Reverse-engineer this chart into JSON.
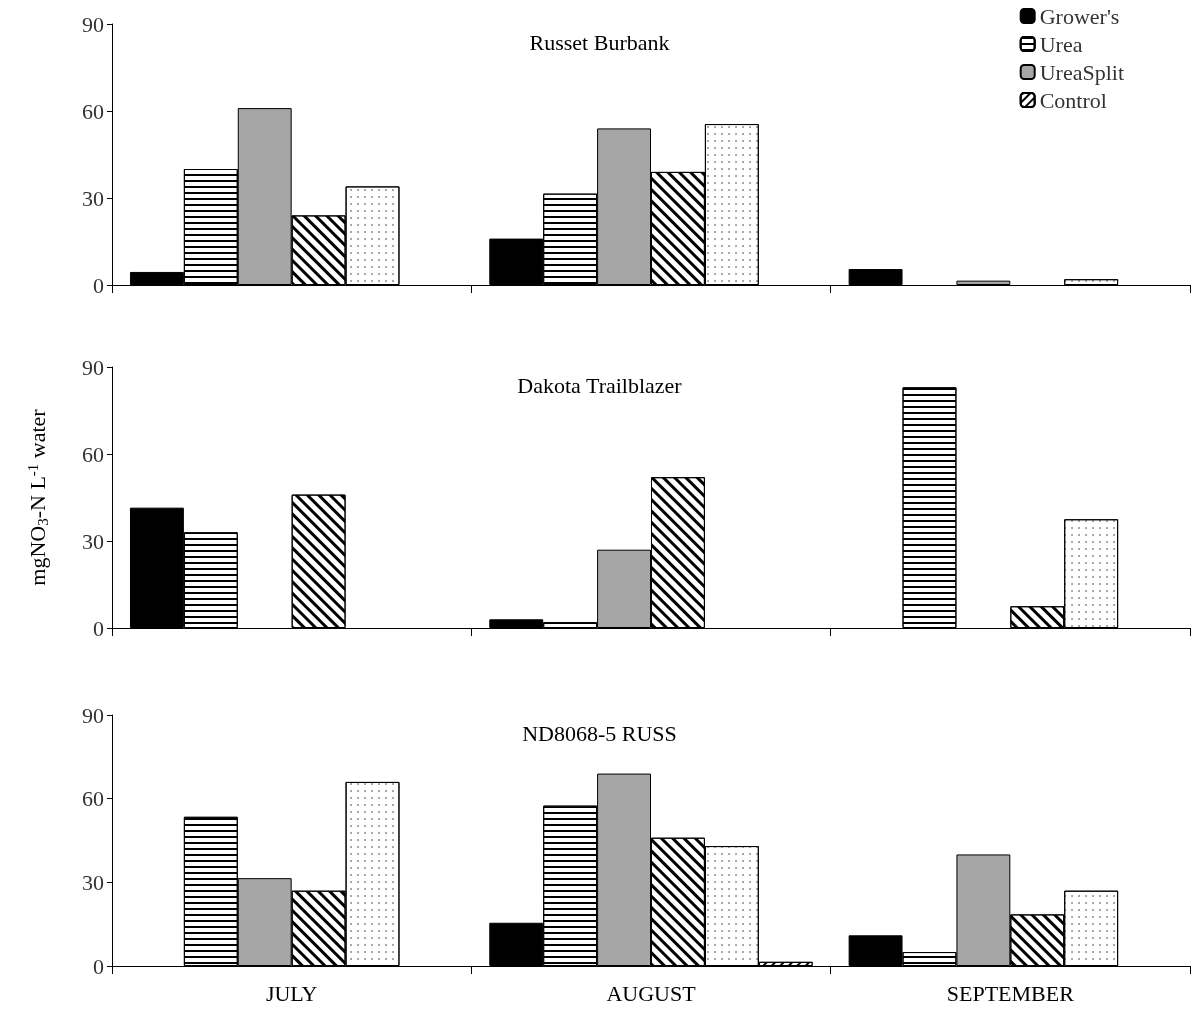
{
  "chart_data": [
    {
      "type": "bar",
      "title": "Russet Burbank",
      "categories": [
        null,
        null,
        null
      ],
      "ylim": [
        0,
        90
      ],
      "yticks": [
        0,
        30,
        60,
        90
      ],
      "grid": false,
      "legend": "top right",
      "tick_labels": "y",
      "series": [
        {
          "name": "Grower's",
          "color": "#000000",
          "values": [
            4.5,
            16,
            5.5
          ]
        },
        {
          "name": "Urea",
          "color": "#ffffff",
          "values": [
            40,
            31.5,
            null
          ]
        },
        {
          "name": "UreaSplit",
          "color": "#a6a6a6",
          "values": [
            61,
            54,
            1.5
          ]
        },
        {
          "color": "#ffffff",
          "values": [
            24,
            39,
            null
          ]
        },
        {
          "color": "#ffffff",
          "values": [
            34,
            55.5,
            2
          ]
        },
        {
          "name": "Control",
          "color": "#ffffff",
          "values": [
            null,
            null,
            null
          ]
        }
      ]
    },
    {
      "type": "bar",
      "title": "Dakota Trailblazer",
      "ylabel": "mgNO$_{3}$-N L$^{-1}$ water",
      "categories": [
        null,
        null,
        null
      ],
      "ylim": [
        0,
        90
      ],
      "yticks": [
        0,
        30,
        60,
        90
      ],
      "grid": false,
      "tick_labels": "y",
      "series": [
        {
          "color": "#000000",
          "values": [
            41.5,
            3,
            null
          ]
        },
        {
          "color": "#ffffff",
          "values": [
            33,
            2,
            83
          ]
        },
        {
          "color": "#a6a6a6",
          "values": [
            null,
            27,
            null
          ]
        },
        {
          "color": "#ffffff",
          "values": [
            46,
            52,
            7.5
          ]
        },
        {
          "color": "#ffffff",
          "values": [
            null,
            null,
            37.5
          ]
        },
        {
          "color": "#ffffff",
          "values": [
            null,
            null,
            null
          ]
        }
      ]
    },
    {
      "type": "bar",
      "title": "ND8068-5 RUSS",
      "categories": [
        "JULY",
        "AUGUST",
        "SEPTEMBER"
      ],
      "ylim": [
        0,
        90
      ],
      "yticks": [
        0,
        30,
        60,
        90
      ],
      "grid": false,
      "series": [
        {
          "color": "#000000",
          "values": [
            null,
            15.5,
            11
          ]
        },
        {
          "color": "#ffffff",
          "values": [
            53.5,
            57.5,
            5
          ]
        },
        {
          "color": "#a6a6a6",
          "values": [
            31.5,
            69,
            40
          ]
        },
        {
          "color": "#ffffff",
          "values": [
            27,
            46,
            18.5
          ]
        },
        {
          "color": "#ffffff",
          "values": [
            66,
            43,
            27
          ]
        },
        {
          "color": "#ffffff",
          "values": [
            null,
            1.5,
            null
          ]
        }
      ]
    }
  ]
}
